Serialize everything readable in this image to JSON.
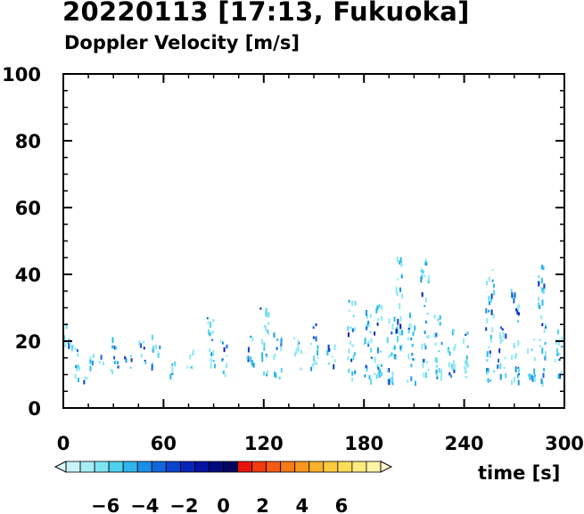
{
  "chart_data": {
    "type": "heatmap",
    "title": "20220113 [17:13, Fukuoka]",
    "subtitle": "Doppler Velocity [m/s]",
    "xlabel": "time [s]",
    "ylabel": "",
    "xlim": [
      0,
      300
    ],
    "ylim": [
      0,
      100
    ],
    "x_ticks": [
      0,
      60,
      120,
      180,
      240,
      300
    ],
    "y_ticks": [
      0,
      20,
      40,
      60,
      80,
      100
    ],
    "colorbar": {
      "range": [
        -8,
        8
      ],
      "tick_labels": [
        "−6",
        "−4",
        "−2",
        "0",
        "2",
        "4",
        "6"
      ],
      "tick_values": [
        -6,
        -4,
        -2,
        0,
        2,
        4,
        6
      ],
      "colors": [
        "#c8f4f8",
        "#a8eef6",
        "#7ee4f2",
        "#4fd0ee",
        "#2eb4ec",
        "#1a8ee8",
        "#1266dc",
        "#0a44cc",
        "#0626b8",
        "#0412a2",
        "#030a80",
        "#020660",
        "#e8140c",
        "#f03a10",
        "#f45a14",
        "#f67a18",
        "#f8961e",
        "#fab22a",
        "#fcca3e",
        "#fddc5a",
        "#feea7e",
        "#fff4a8"
      ]
    },
    "series": [
      {
        "x": 2,
        "y": [
          18,
          26
        ]
      },
      {
        "x": 5,
        "y": [
          16,
          19
        ]
      },
      {
        "x": 8,
        "y": [
          9,
          18
        ]
      },
      {
        "x": 12,
        "y": [
          8,
          10
        ]
      },
      {
        "x": 17,
        "y": [
          9,
          17
        ]
      },
      {
        "x": 22,
        "y": [
          13,
          16
        ]
      },
      {
        "x": 30,
        "y": [
          10,
          22
        ]
      },
      {
        "x": 38,
        "y": [
          11,
          16
        ]
      },
      {
        "x": 47,
        "y": [
          12,
          21
        ]
      },
      {
        "x": 55,
        "y": [
          12,
          22
        ]
      },
      {
        "x": 64,
        "y": [
          10,
          15
        ]
      },
      {
        "x": 75,
        "y": [
          12,
          19
        ]
      },
      {
        "x": 88,
        "y": [
          11,
          29
        ]
      },
      {
        "x": 96,
        "y": [
          10,
          21
        ]
      },
      {
        "x": 112,
        "y": [
          12,
          23
        ]
      },
      {
        "x": 120,
        "y": [
          9,
          31
        ]
      },
      {
        "x": 128,
        "y": [
          9,
          23
        ]
      },
      {
        "x": 140,
        "y": [
          12,
          22
        ]
      },
      {
        "x": 150,
        "y": [
          11,
          27
        ]
      },
      {
        "x": 160,
        "y": [
          12,
          21
        ]
      },
      {
        "x": 172,
        "y": [
          9,
          33
        ]
      },
      {
        "x": 182,
        "y": [
          8,
          30
        ]
      },
      {
        "x": 188,
        "y": [
          9,
          32
        ]
      },
      {
        "x": 196,
        "y": [
          8,
          29
        ]
      },
      {
        "x": 200,
        "y": [
          15,
          49
        ]
      },
      {
        "x": 208,
        "y": [
          8,
          29
        ]
      },
      {
        "x": 216,
        "y": [
          9,
          46
        ]
      },
      {
        "x": 224,
        "y": [
          9,
          29
        ]
      },
      {
        "x": 232,
        "y": [
          8,
          27
        ]
      },
      {
        "x": 240,
        "y": [
          9,
          23
        ]
      },
      {
        "x": 255,
        "y": [
          8,
          43
        ]
      },
      {
        "x": 262,
        "y": [
          9,
          27
        ]
      },
      {
        "x": 270,
        "y": [
          8,
          36
        ]
      },
      {
        "x": 280,
        "y": [
          9,
          21
        ]
      },
      {
        "x": 286,
        "y": [
          8,
          43
        ]
      },
      {
        "x": 296,
        "y": [
          9,
          24
        ]
      }
    ]
  }
}
